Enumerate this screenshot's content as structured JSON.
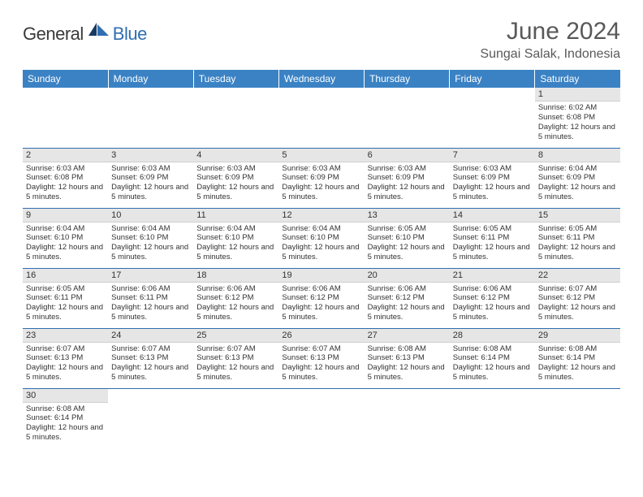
{
  "logo": {
    "general": "General",
    "blue": "Blue"
  },
  "title": "June 2024",
  "location": "Sungai Salak, Indonesia",
  "colors": {
    "header_bg": "#3a82c4",
    "header_text": "#ffffff",
    "daynum_bg": "#e6e6e6",
    "row_border": "#2f6fb0",
    "text": "#333333",
    "title_text": "#595959",
    "logo_blue": "#2f6fb0",
    "logo_dark": "#3a3a3a"
  },
  "weekdays": [
    "Sunday",
    "Monday",
    "Tuesday",
    "Wednesday",
    "Thursday",
    "Friday",
    "Saturday"
  ],
  "weeks": [
    [
      null,
      null,
      null,
      null,
      null,
      null,
      {
        "n": "1",
        "sr": "6:02 AM",
        "ss": "6:08 PM",
        "dl": "12 hours and 5 minutes."
      }
    ],
    [
      {
        "n": "2",
        "sr": "6:03 AM",
        "ss": "6:08 PM",
        "dl": "12 hours and 5 minutes."
      },
      {
        "n": "3",
        "sr": "6:03 AM",
        "ss": "6:09 PM",
        "dl": "12 hours and 5 minutes."
      },
      {
        "n": "4",
        "sr": "6:03 AM",
        "ss": "6:09 PM",
        "dl": "12 hours and 5 minutes."
      },
      {
        "n": "5",
        "sr": "6:03 AM",
        "ss": "6:09 PM",
        "dl": "12 hours and 5 minutes."
      },
      {
        "n": "6",
        "sr": "6:03 AM",
        "ss": "6:09 PM",
        "dl": "12 hours and 5 minutes."
      },
      {
        "n": "7",
        "sr": "6:03 AM",
        "ss": "6:09 PM",
        "dl": "12 hours and 5 minutes."
      },
      {
        "n": "8",
        "sr": "6:04 AM",
        "ss": "6:09 PM",
        "dl": "12 hours and 5 minutes."
      }
    ],
    [
      {
        "n": "9",
        "sr": "6:04 AM",
        "ss": "6:10 PM",
        "dl": "12 hours and 5 minutes."
      },
      {
        "n": "10",
        "sr": "6:04 AM",
        "ss": "6:10 PM",
        "dl": "12 hours and 5 minutes."
      },
      {
        "n": "11",
        "sr": "6:04 AM",
        "ss": "6:10 PM",
        "dl": "12 hours and 5 minutes."
      },
      {
        "n": "12",
        "sr": "6:04 AM",
        "ss": "6:10 PM",
        "dl": "12 hours and 5 minutes."
      },
      {
        "n": "13",
        "sr": "6:05 AM",
        "ss": "6:10 PM",
        "dl": "12 hours and 5 minutes."
      },
      {
        "n": "14",
        "sr": "6:05 AM",
        "ss": "6:11 PM",
        "dl": "12 hours and 5 minutes."
      },
      {
        "n": "15",
        "sr": "6:05 AM",
        "ss": "6:11 PM",
        "dl": "12 hours and 5 minutes."
      }
    ],
    [
      {
        "n": "16",
        "sr": "6:05 AM",
        "ss": "6:11 PM",
        "dl": "12 hours and 5 minutes."
      },
      {
        "n": "17",
        "sr": "6:06 AM",
        "ss": "6:11 PM",
        "dl": "12 hours and 5 minutes."
      },
      {
        "n": "18",
        "sr": "6:06 AM",
        "ss": "6:12 PM",
        "dl": "12 hours and 5 minutes."
      },
      {
        "n": "19",
        "sr": "6:06 AM",
        "ss": "6:12 PM",
        "dl": "12 hours and 5 minutes."
      },
      {
        "n": "20",
        "sr": "6:06 AM",
        "ss": "6:12 PM",
        "dl": "12 hours and 5 minutes."
      },
      {
        "n": "21",
        "sr": "6:06 AM",
        "ss": "6:12 PM",
        "dl": "12 hours and 5 minutes."
      },
      {
        "n": "22",
        "sr": "6:07 AM",
        "ss": "6:12 PM",
        "dl": "12 hours and 5 minutes."
      }
    ],
    [
      {
        "n": "23",
        "sr": "6:07 AM",
        "ss": "6:13 PM",
        "dl": "12 hours and 5 minutes."
      },
      {
        "n": "24",
        "sr": "6:07 AM",
        "ss": "6:13 PM",
        "dl": "12 hours and 5 minutes."
      },
      {
        "n": "25",
        "sr": "6:07 AM",
        "ss": "6:13 PM",
        "dl": "12 hours and 5 minutes."
      },
      {
        "n": "26",
        "sr": "6:07 AM",
        "ss": "6:13 PM",
        "dl": "12 hours and 5 minutes."
      },
      {
        "n": "27",
        "sr": "6:08 AM",
        "ss": "6:13 PM",
        "dl": "12 hours and 5 minutes."
      },
      {
        "n": "28",
        "sr": "6:08 AM",
        "ss": "6:14 PM",
        "dl": "12 hours and 5 minutes."
      },
      {
        "n": "29",
        "sr": "6:08 AM",
        "ss": "6:14 PM",
        "dl": "12 hours and 5 minutes."
      }
    ],
    [
      {
        "n": "30",
        "sr": "6:08 AM",
        "ss": "6:14 PM",
        "dl": "12 hours and 5 minutes."
      },
      null,
      null,
      null,
      null,
      null,
      null
    ]
  ],
  "labels": {
    "sunrise": "Sunrise:",
    "sunset": "Sunset:",
    "daylight": "Daylight:"
  }
}
